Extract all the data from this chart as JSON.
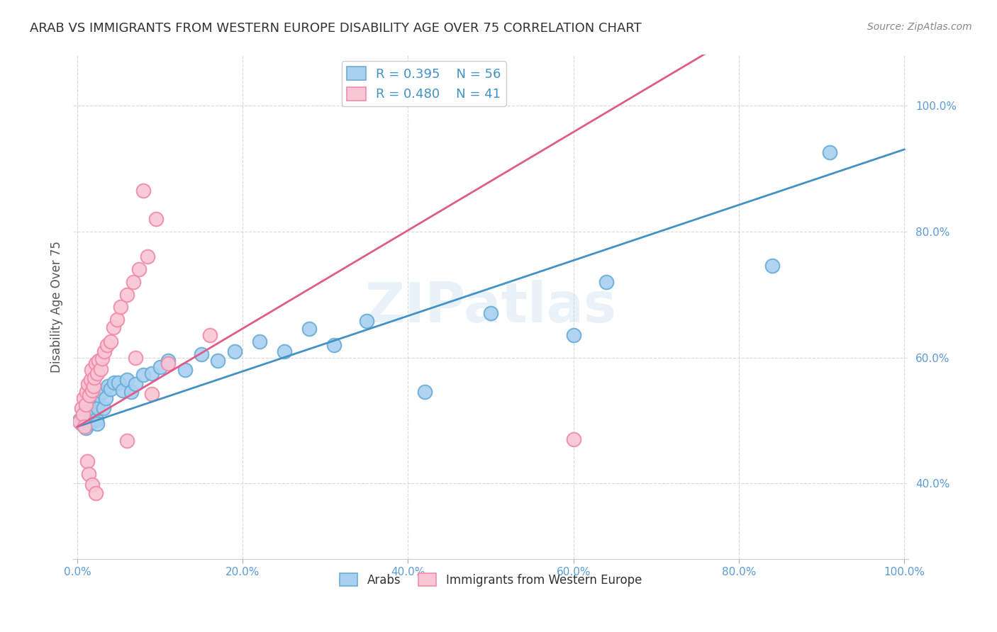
{
  "title": "ARAB VS IMMIGRANTS FROM WESTERN EUROPE DISABILITY AGE OVER 75 CORRELATION CHART",
  "source": "Source: ZipAtlas.com",
  "ylabel": "Disability Age Over 75",
  "watermark": "ZIPatlas",
  "legend_blue_r": "R = 0.395",
  "legend_blue_n": "N = 56",
  "legend_pink_r": "R = 0.480",
  "legend_pink_n": "N = 41",
  "legend_blue_label": "Arabs",
  "legend_pink_label": "Immigrants from Western Europe",
  "blue_scatter_face": "#a8d0f0",
  "blue_scatter_edge": "#6baed6",
  "pink_scatter_face": "#f9c6d5",
  "pink_scatter_edge": "#f08caa",
  "blue_line_color": "#4292c6",
  "pink_line_color": "#e05c8a",
  "title_color": "#333333",
  "axis_tick_color": "#5b9bd5",
  "grid_color": "#d0d0d0",
  "background_color": "#ffffff",
  "xlim": [
    -0.005,
    1.005
  ],
  "ylim": [
    0.28,
    1.08
  ],
  "xticks": [
    0.0,
    0.2,
    0.4,
    0.6,
    0.8,
    1.0
  ],
  "yticks": [
    0.4,
    0.6,
    0.8,
    1.0
  ],
  "xtick_labels": [
    "0.0%",
    "20.0%",
    "40.0%",
    "60.0%",
    "80.0%",
    "100.0%"
  ],
  "ytick_labels": [
    "40.0%",
    "60.0%",
    "80.0%",
    "100.0%"
  ],
  "blue_line": {
    "x0": 0.0,
    "y0": 0.49,
    "x1": 1.0,
    "y1": 0.93
  },
  "pink_line": {
    "x0": 0.0,
    "y0": 0.49,
    "x1": 0.68,
    "y1": 1.02
  },
  "blue_x": [
    0.003,
    0.005,
    0.006,
    0.007,
    0.008,
    0.008,
    0.009,
    0.01,
    0.01,
    0.011,
    0.012,
    0.013,
    0.014,
    0.015,
    0.015,
    0.016,
    0.017,
    0.018,
    0.019,
    0.02,
    0.021,
    0.022,
    0.023,
    0.024,
    0.025,
    0.027,
    0.03,
    0.032,
    0.034,
    0.037,
    0.04,
    0.045,
    0.05,
    0.055,
    0.06,
    0.065,
    0.07,
    0.08,
    0.09,
    0.1,
    0.11,
    0.13,
    0.15,
    0.17,
    0.19,
    0.22,
    0.25,
    0.28,
    0.31,
    0.35,
    0.42,
    0.5,
    0.6,
    0.64,
    0.84,
    0.91
  ],
  "blue_y": [
    0.5,
    0.495,
    0.505,
    0.498,
    0.51,
    0.495,
    0.512,
    0.502,
    0.488,
    0.515,
    0.508,
    0.5,
    0.495,
    0.52,
    0.505,
    0.51,
    0.525,
    0.498,
    0.515,
    0.53,
    0.51,
    0.535,
    0.502,
    0.495,
    0.52,
    0.54,
    0.545,
    0.52,
    0.535,
    0.555,
    0.55,
    0.56,
    0.56,
    0.548,
    0.565,
    0.545,
    0.558,
    0.572,
    0.575,
    0.585,
    0.595,
    0.58,
    0.605,
    0.595,
    0.61,
    0.625,
    0.61,
    0.645,
    0.62,
    0.658,
    0.545,
    0.67,
    0.635,
    0.72,
    0.745,
    0.925
  ],
  "pink_x": [
    0.003,
    0.005,
    0.007,
    0.008,
    0.009,
    0.01,
    0.011,
    0.013,
    0.015,
    0.016,
    0.017,
    0.018,
    0.02,
    0.021,
    0.022,
    0.024,
    0.026,
    0.028,
    0.03,
    0.033,
    0.036,
    0.04,
    0.044,
    0.048,
    0.052,
    0.06,
    0.068,
    0.075,
    0.085,
    0.095,
    0.012,
    0.014,
    0.018,
    0.022,
    0.06,
    0.07,
    0.09,
    0.11,
    0.16,
    0.6,
    0.08
  ],
  "pink_y": [
    0.498,
    0.52,
    0.51,
    0.535,
    0.49,
    0.525,
    0.545,
    0.558,
    0.54,
    0.565,
    0.58,
    0.548,
    0.555,
    0.568,
    0.59,
    0.575,
    0.595,
    0.582,
    0.598,
    0.61,
    0.62,
    0.625,
    0.648,
    0.66,
    0.68,
    0.7,
    0.72,
    0.74,
    0.76,
    0.82,
    0.435,
    0.415,
    0.398,
    0.385,
    0.468,
    0.6,
    0.542,
    0.59,
    0.635,
    0.47,
    0.865
  ]
}
